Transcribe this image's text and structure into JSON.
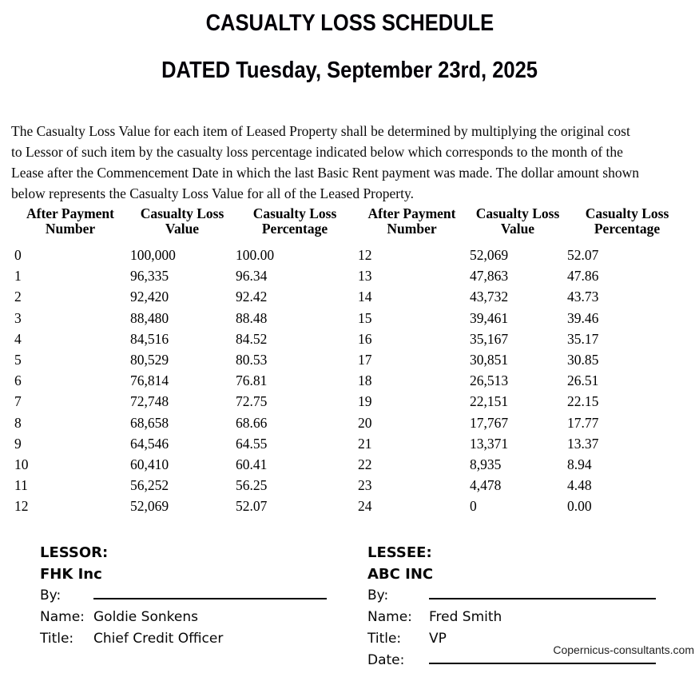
{
  "title": "CASUALTY LOSS SCHEDULE",
  "dated": "DATED Tuesday, September 23rd, 2025",
  "intro_lines": [
    "The Casualty Loss Value for each item of Leased Property shall be determined by multiplying the original cost",
    "to Lessor of such item by the casualty loss percentage indicated below which corresponds to the month of the",
    "Lease after the Commencement Date in which the last Basic Rent payment was made. The dollar amount shown",
    "below represents the Casualty Loss Value for all of the Leased Property."
  ],
  "table": {
    "headers": [
      [
        "After Payment",
        "Number"
      ],
      [
        "Casualty Loss",
        "Value"
      ],
      [
        "Casualty Loss",
        "Percentage"
      ]
    ],
    "left_rows": [
      [
        "0",
        "100,000",
        "100.00"
      ],
      [
        "1",
        "96,335",
        "96.34"
      ],
      [
        "2",
        "92,420",
        "92.42"
      ],
      [
        "3",
        "88,480",
        "88.48"
      ],
      [
        "4",
        "84,516",
        "84.52"
      ],
      [
        "5",
        "80,529",
        "80.53"
      ],
      [
        "6",
        "76,814",
        "76.81"
      ],
      [
        "7",
        "72,748",
        "72.75"
      ],
      [
        "8",
        "68,658",
        "68.66"
      ],
      [
        "9",
        "64,546",
        "64.55"
      ],
      [
        "10",
        "60,410",
        "60.41"
      ],
      [
        "11",
        "56,252",
        "56.25"
      ],
      [
        "12",
        "52,069",
        "52.07"
      ]
    ],
    "right_rows": [
      [
        "12",
        "52,069",
        "52.07"
      ],
      [
        "13",
        "47,863",
        "47.86"
      ],
      [
        "14",
        "43,732",
        "43.73"
      ],
      [
        "15",
        "39,461",
        "39.46"
      ],
      [
        "16",
        "35,167",
        "35.17"
      ],
      [
        "17",
        "30,851",
        "30.85"
      ],
      [
        "18",
        "26,513",
        "26.51"
      ],
      [
        "19",
        "22,151",
        "22.15"
      ],
      [
        "20",
        "17,767",
        "17.77"
      ],
      [
        "21",
        "13,371",
        "13.37"
      ],
      [
        "22",
        "8,935",
        "8.94"
      ],
      [
        "23",
        "4,478",
        "4.48"
      ],
      [
        "24",
        "0",
        "0.00"
      ]
    ]
  },
  "lessor": {
    "heading": "LESSOR:",
    "company": "FHK Inc",
    "by_label": "By:",
    "name_label": "Name:",
    "name": "Goldie Sonkens",
    "title_label": "Title:",
    "title": "Chief Credit Officer"
  },
  "lessee": {
    "heading": "LESSEE:",
    "company": "ABC INC",
    "by_label": "By:",
    "name_label": "Name:",
    "name": "Fred Smith",
    "title_label": "Title:",
    "title": "VP",
    "date_label": "Date:"
  },
  "watermark": "Copernicus-consultants.com"
}
